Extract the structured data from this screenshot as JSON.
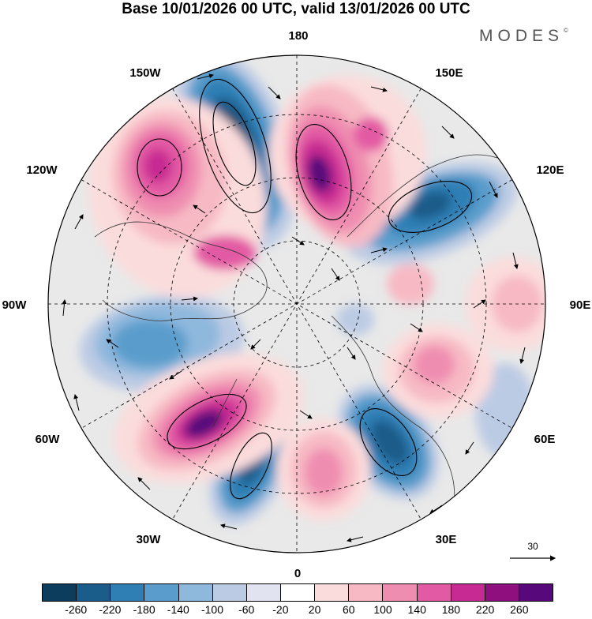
{
  "title": "Base 10/01/2026 00 UTC, valid 13/01/2026 00 UTC",
  "brand": "MODES",
  "brand_mark": "©",
  "longitude_labels": {
    "top": "180",
    "top_right": "150E",
    "right_upper": "120E",
    "right": "90E",
    "right_lower": "60E",
    "bottom_right": "30E",
    "bottom": "0",
    "bottom_left": "30W",
    "left_lower": "60W",
    "left": "90W",
    "left_upper": "120W",
    "top_left": "150W"
  },
  "reference_vector": {
    "label": "30"
  },
  "colors": {
    "neg_260": "#0d3d5c",
    "neg_220": "#1a5c8a",
    "neg_180": "#2f7fb5",
    "neg_140": "#5a9dcc",
    "neg_100": "#8fb8dd",
    "neg_60": "#bccbe4",
    "neg_20": "#e2e3f0",
    "zero": "#ffffff",
    "pos_20": "#fbdcdc",
    "pos_60": "#f7b9c4",
    "pos_100": "#ef8db0",
    "pos_140": "#e35aa4",
    "pos_180": "#c72a92",
    "pos_220": "#8f0f7f",
    "pos_260": "#57087a",
    "background": "#e9e9e9"
  },
  "colorbar": {
    "ticks": [
      "-260",
      "-220",
      "-180",
      "-140",
      "-100",
      "-60",
      "-20",
      "20",
      "60",
      "100",
      "140",
      "180",
      "220",
      "260"
    ],
    "segments": [
      "#0d3d5c",
      "#1a5c8a",
      "#2f7fb5",
      "#5a9dcc",
      "#8fb8dd",
      "#bccbe4",
      "#e2e3f0",
      "#ffffff",
      "#fbdcdc",
      "#f7b9c4",
      "#ef8db0",
      "#e35aa4",
      "#c72a92",
      "#8f0f7f",
      "#57087a"
    ]
  }
}
